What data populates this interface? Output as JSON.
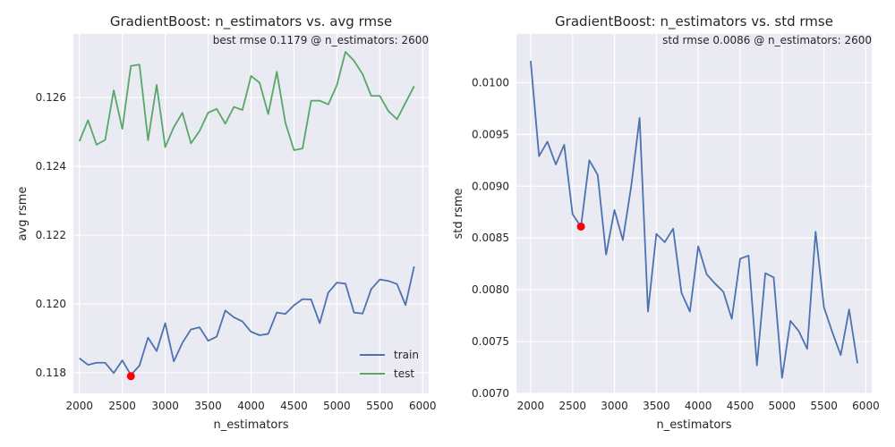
{
  "chart_data": [
    {
      "type": "line",
      "title": "GradientBoost: n_estimators vs. avg rmse",
      "annotation": "best rmse 0.1179 @ n_estimators: 2600",
      "xlabel": "n_estimators",
      "ylabel": "avg rsme",
      "xlim": [
        1930,
        6070
      ],
      "ylim": [
        0.1174,
        0.12785
      ],
      "x_ticks": [
        2000,
        2500,
        3000,
        3500,
        4000,
        4500,
        5000,
        5500,
        6000
      ],
      "y_ticks": [
        0.118,
        0.12,
        0.122,
        0.124,
        0.126
      ],
      "y_tick_labels": [
        "0.118",
        "0.120",
        "0.122",
        "0.124",
        "0.126"
      ],
      "grid": true,
      "legend": "lower-right",
      "x": [
        2000,
        2100,
        2200,
        2300,
        2400,
        2500,
        2600,
        2700,
        2800,
        2900,
        3000,
        3100,
        3200,
        3300,
        3400,
        3500,
        3600,
        3700,
        3800,
        3900,
        4000,
        4100,
        4200,
        4300,
        4400,
        4500,
        4600,
        4700,
        4800,
        4900,
        5000,
        5100,
        5200,
        5300,
        5400,
        5500,
        5600,
        5700,
        5800,
        5900
      ],
      "series": [
        {
          "name": "train",
          "color": "#4c72b0",
          "values": [
            0.11842,
            0.11823,
            0.11829,
            0.11829,
            0.11799,
            0.11836,
            0.11793,
            0.11821,
            0.11902,
            0.11863,
            0.11944,
            0.11833,
            0.11887,
            0.11926,
            0.11932,
            0.11893,
            0.11905,
            0.11981,
            0.11961,
            0.11949,
            0.11919,
            0.11909,
            0.11913,
            0.11975,
            0.11971,
            0.11996,
            0.12014,
            0.12013,
            0.11944,
            0.12033,
            0.12062,
            0.12059,
            0.11975,
            0.11972,
            0.12043,
            0.12071,
            0.12067,
            0.12058,
            0.11997,
            0.12109
          ]
        },
        {
          "name": "test",
          "color": "#55a868",
          "values": [
            0.12473,
            0.12534,
            0.12463,
            0.12477,
            0.12621,
            0.12509,
            0.12692,
            0.12696,
            0.12476,
            0.12637,
            0.12456,
            0.12514,
            0.12556,
            0.12467,
            0.12503,
            0.12556,
            0.12567,
            0.12524,
            0.12573,
            0.12564,
            0.12663,
            0.12643,
            0.12552,
            0.12675,
            0.12527,
            0.12447,
            0.12452,
            0.12591,
            0.12591,
            0.1258,
            0.12636,
            0.12733,
            0.12707,
            0.12668,
            0.12605,
            0.12605,
            0.12561,
            0.12537,
            0.12585,
            0.12633
          ]
        }
      ],
      "highlight": {
        "x": 2600,
        "y": 0.1179,
        "color": "#ff0000"
      }
    },
    {
      "type": "line",
      "title": "GradientBoost: n_estimators vs. std rmse",
      "annotation": "std rmse 0.0086 @ n_estimators: 2600",
      "xlabel": "n_estimators",
      "ylabel": "std rsme",
      "xlim": [
        1830,
        6070
      ],
      "ylim": [
        0.007,
        0.01047
      ],
      "x_ticks": [
        2000,
        2500,
        3000,
        3500,
        4000,
        4500,
        5000,
        5500,
        6000
      ],
      "y_ticks": [
        0.007,
        0.0075,
        0.008,
        0.0085,
        0.009,
        0.0095,
        0.01
      ],
      "y_tick_labels": [
        "0.0070",
        "0.0075",
        "0.0080",
        "0.0085",
        "0.0090",
        "0.0095",
        "0.0100"
      ],
      "grid": true,
      "x": [
        2000,
        2100,
        2200,
        2300,
        2400,
        2500,
        2600,
        2700,
        2800,
        2900,
        3000,
        3100,
        3200,
        3300,
        3400,
        3500,
        3600,
        3700,
        3800,
        3900,
        4000,
        4100,
        4200,
        4300,
        4400,
        4500,
        4600,
        4700,
        4800,
        4900,
        5000,
        5100,
        5200,
        5300,
        5400,
        5500,
        5600,
        5700,
        5800,
        5900
      ],
      "series": [
        {
          "color": "#4c72b0",
          "values": [
            0.01021,
            0.00929,
            0.00943,
            0.00921,
            0.0094,
            0.00873,
            0.00861,
            0.00925,
            0.00911,
            0.00834,
            0.00877,
            0.00848,
            0.009,
            0.00966,
            0.00779,
            0.00854,
            0.00846,
            0.00859,
            0.00797,
            0.00779,
            0.00842,
            0.00815,
            0.00806,
            0.00798,
            0.00772,
            0.0083,
            0.00833,
            0.00727,
            0.00816,
            0.00812,
            0.00715,
            0.0077,
            0.0076,
            0.00743,
            0.00856,
            0.00783,
            0.00759,
            0.00737,
            0.00781,
            0.00729
          ]
        }
      ],
      "highlight": {
        "x": 2600,
        "y": 0.00861,
        "color": "#ff0000"
      }
    }
  ]
}
